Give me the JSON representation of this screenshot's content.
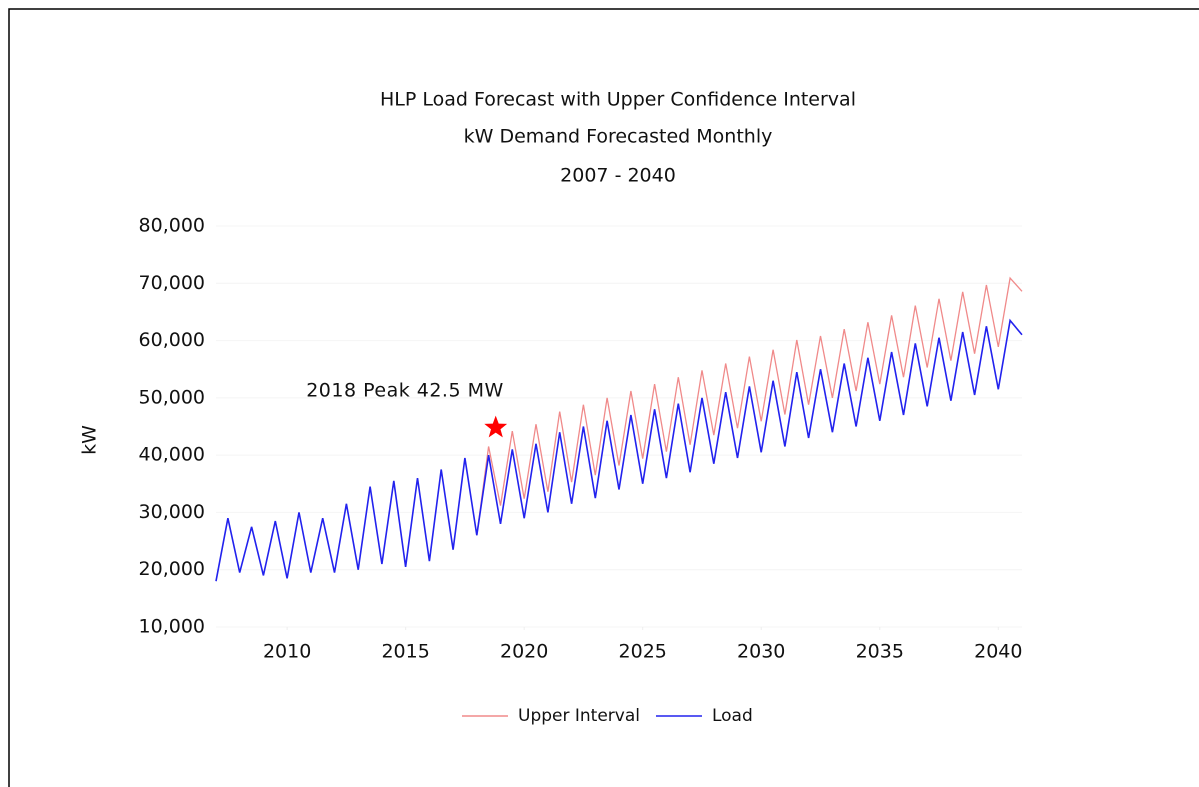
{
  "chart_data": {
    "type": "line",
    "title": "HLP Load Forecast with Upper Confidence Interval",
    "subtitle": "kW Demand Forecasted Monthly",
    "subtitle2": "2007 - 2040",
    "ylabel": "kW",
    "xlim": [
      2007,
      2041
    ],
    "xticks": [
      2010,
      2015,
      2020,
      2025,
      2030,
      2035,
      2040
    ],
    "ylim": [
      10000,
      80000
    ],
    "yticks": [
      {
        "value": 10000,
        "label": "10,000"
      },
      {
        "value": 20000,
        "label": "20,000"
      },
      {
        "value": 30000,
        "label": "30,000"
      },
      {
        "value": 40000,
        "label": "40,000"
      },
      {
        "value": 50000,
        "label": "50,000"
      },
      {
        "value": 60000,
        "label": "60,000"
      },
      {
        "value": 70000,
        "label": "70,000"
      },
      {
        "value": 80000,
        "label": "80,000"
      }
    ],
    "legend": "bottom",
    "annotations": [
      {
        "text": "2018 Peak 42.5 MW",
        "x": 2018.8,
        "y": 44800,
        "color": "#ff0000"
      }
    ],
    "series": [
      {
        "name": "Upper Interval",
        "color": "#f08a8a",
        "x": [
          2018.0,
          2018.5,
          2019.0,
          2019.5,
          2020.0,
          2020.5,
          2021.0,
          2021.5,
          2022.0,
          2022.5,
          2023.0,
          2023.5,
          2024.0,
          2024.5,
          2025.0,
          2025.5,
          2026.0,
          2026.5,
          2027.0,
          2027.5,
          2028.0,
          2028.5,
          2029.0,
          2029.5,
          2030.0,
          2030.5,
          2031.0,
          2031.5,
          2032.0,
          2032.5,
          2033.0,
          2033.5,
          2034.0,
          2034.5,
          2035.0,
          2035.5,
          2036.0,
          2036.5,
          2037.0,
          2037.5,
          2038.0,
          2038.5,
          2039.0,
          2039.5,
          2040.0,
          2040.5,
          2041.0
        ],
        "values": [
          26000,
          41500,
          31200,
          44200,
          32400,
          45400,
          33600,
          47600,
          35300,
          48800,
          36500,
          50000,
          38200,
          51200,
          39400,
          52400,
          40600,
          53600,
          41800,
          54800,
          43500,
          56000,
          44700,
          57200,
          45900,
          58400,
          47100,
          60100,
          48800,
          60800,
          50000,
          62000,
          51200,
          63200,
          52400,
          64400,
          53600,
          66100,
          55300,
          67300,
          56500,
          68500,
          57700,
          69700,
          58900,
          70900,
          68600
        ]
      },
      {
        "name": "Load",
        "color": "#2222ee",
        "x": [
          2007.0,
          2007.5,
          2008.0,
          2008.5,
          2009.0,
          2009.5,
          2010.0,
          2010.5,
          2011.0,
          2011.5,
          2012.0,
          2012.5,
          2013.0,
          2013.5,
          2014.0,
          2014.5,
          2015.0,
          2015.5,
          2016.0,
          2016.5,
          2017.0,
          2017.5,
          2018.0,
          2018.5,
          2019.0,
          2019.5,
          2020.0,
          2020.5,
          2021.0,
          2021.5,
          2022.0,
          2022.5,
          2023.0,
          2023.5,
          2024.0,
          2024.5,
          2025.0,
          2025.5,
          2026.0,
          2026.5,
          2027.0,
          2027.5,
          2028.0,
          2028.5,
          2029.0,
          2029.5,
          2030.0,
          2030.5,
          2031.0,
          2031.5,
          2032.0,
          2032.5,
          2033.0,
          2033.5,
          2034.0,
          2034.5,
          2035.0,
          2035.5,
          2036.0,
          2036.5,
          2037.0,
          2037.5,
          2038.0,
          2038.5,
          2039.0,
          2039.5,
          2040.0,
          2040.5,
          2041.0
        ],
        "values": [
          18000,
          29000,
          19500,
          27500,
          19000,
          28500,
          18500,
          30000,
          19500,
          29000,
          19500,
          31500,
          20000,
          34500,
          21000,
          35500,
          20500,
          36000,
          21500,
          37500,
          23500,
          39500,
          26000,
          40000,
          28000,
          41000,
          29000,
          42000,
          30000,
          44000,
          31500,
          45000,
          32500,
          46000,
          34000,
          47000,
          35000,
          48000,
          36000,
          49000,
          37000,
          50000,
          38500,
          51000,
          39500,
          52000,
          40500,
          53000,
          41500,
          54500,
          43000,
          55000,
          44000,
          56000,
          45000,
          57000,
          46000,
          58000,
          47000,
          59500,
          48500,
          60500,
          49500,
          61500,
          50500,
          62500,
          51500,
          63500,
          61000
        ]
      }
    ]
  }
}
